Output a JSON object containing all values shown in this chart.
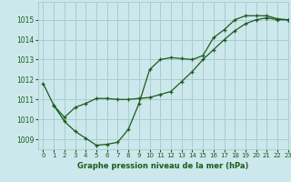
{
  "title": "Graphe pression niveau de la mer (hPa)",
  "bg_color": "#cce8ec",
  "grid_color": "#aaccd0",
  "line_color": "#1a5c1a",
  "xlim": [
    -0.5,
    23
  ],
  "ylim": [
    1008.5,
    1015.9
  ],
  "yticks": [
    1009,
    1010,
    1011,
    1012,
    1013,
    1014,
    1015
  ],
  "xticks": [
    0,
    1,
    2,
    3,
    4,
    5,
    6,
    7,
    8,
    9,
    10,
    11,
    12,
    13,
    14,
    15,
    16,
    17,
    18,
    19,
    20,
    21,
    22,
    23
  ],
  "series1_x": [
    0,
    1,
    2,
    3,
    4,
    5,
    6,
    7,
    8,
    9,
    10,
    11,
    12,
    13,
    14,
    15,
    16,
    17,
    18,
    19,
    20,
    21,
    22,
    23
  ],
  "series1_y": [
    1011.8,
    1010.7,
    1009.9,
    1009.4,
    1009.05,
    1008.7,
    1008.75,
    1008.85,
    1009.5,
    1010.8,
    1012.5,
    1013.0,
    1013.1,
    1013.05,
    1013.0,
    1013.2,
    1014.1,
    1014.5,
    1015.0,
    1015.2,
    1015.2,
    1015.2,
    1015.05,
    1015.0
  ],
  "series2_x": [
    1,
    2,
    3,
    4,
    5,
    6,
    7,
    8,
    9,
    10,
    11,
    12,
    13,
    14,
    15,
    16,
    17,
    18,
    19,
    20,
    21,
    22,
    23
  ],
  "series2_y": [
    1010.7,
    1010.1,
    1010.6,
    1010.8,
    1011.05,
    1011.05,
    1011.0,
    1011.0,
    1011.05,
    1011.1,
    1011.25,
    1011.4,
    1011.9,
    1012.4,
    1013.0,
    1013.5,
    1014.0,
    1014.45,
    1014.8,
    1015.0,
    1015.1,
    1015.0,
    1015.0
  ]
}
